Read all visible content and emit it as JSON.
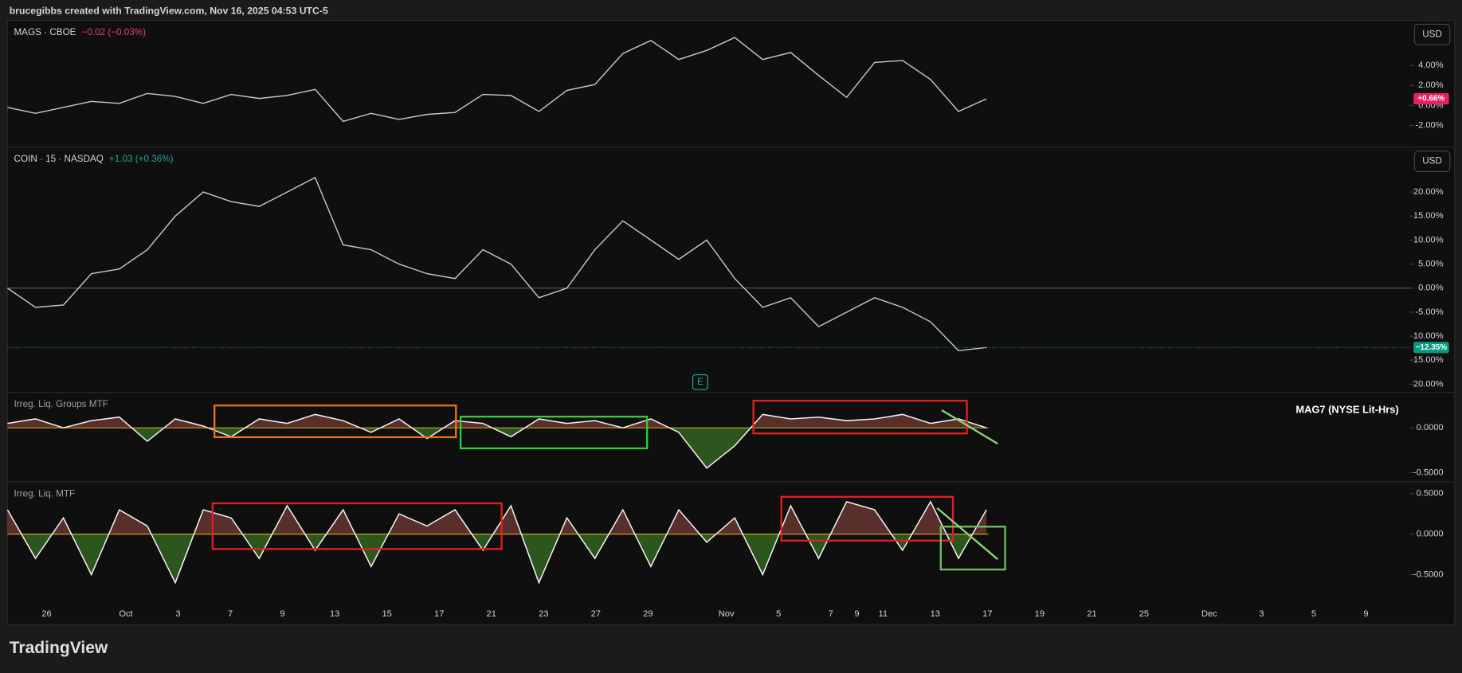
{
  "header": "brucegibbs created with TradingView.com, Nov 16, 2025 04:53 UTC-5",
  "footer": "TradingView",
  "currency_button": "USD",
  "earnings_marker": "E",
  "x_axis_labels": [
    "26",
    "Oct",
    "3",
    "7",
    "9",
    "13",
    "15",
    "17",
    "21",
    "23",
    "27",
    "29",
    "Nov",
    "5",
    "7",
    "9",
    "11",
    "13",
    "17",
    "19",
    "21",
    "25",
    "Dec",
    "3",
    "5",
    "9"
  ],
  "chart_data": [
    {
      "type": "line",
      "title": "MAGS · CBOE",
      "change": "−0.02 (−0.03%)",
      "change_color": "#f23d72",
      "ylim": [
        -4.1,
        8.5
      ],
      "yticks": [
        {
          "value": 4,
          "label": "4.00%"
        },
        {
          "value": 2,
          "label": "2.00%"
        },
        {
          "value": 0,
          "label": "0.00%"
        },
        {
          "value": -2,
          "label": "-2.00%"
        }
      ],
      "last": {
        "value": 0.66,
        "label": "+0.66%",
        "color": "#e91e63"
      },
      "series": [
        {
          "color": "#c9c9c9",
          "values": [
            -0.2,
            -0.8,
            -0.2,
            0.4,
            0.2,
            1.2,
            0.9,
            0.2,
            1.1,
            0.7,
            1.0,
            1.6,
            -1.6,
            -0.8,
            -1.4,
            -0.9,
            -0.7,
            1.1,
            1.0,
            -0.6,
            1.5,
            2.1,
            5.2,
            6.5,
            4.6,
            5.5,
            6.8,
            4.6,
            5.3,
            3.0,
            0.8,
            4.3,
            4.5,
            2.6,
            -0.6,
            0.66
          ]
        }
      ]
    },
    {
      "type": "line",
      "title": "COIN · 15 · NASDAQ",
      "change": "+1.03 (+0.36%)",
      "change_color": "#26a69a",
      "ylim": [
        -21.5,
        29.3
      ],
      "yticks": [
        {
          "value": 20,
          "label": "20.00%"
        },
        {
          "value": 15,
          "label": "15.00%"
        },
        {
          "value": 10,
          "label": "10.00%"
        },
        {
          "value": 5,
          "label": "5.00%"
        },
        {
          "value": 0,
          "label": "0.00%"
        },
        {
          "value": -5,
          "label": "-5.00%"
        },
        {
          "value": -10,
          "label": "-10.00%"
        },
        {
          "value": -15,
          "label": "-15.00%"
        },
        {
          "value": -20,
          "label": "-20.00%"
        }
      ],
      "last": {
        "value": -12.35,
        "label": "−12.35%",
        "color": "#089981"
      },
      "series": [
        {
          "color": "#c9c9c9",
          "values": [
            0,
            -4,
            -3.5,
            3,
            4,
            8,
            15,
            20,
            18,
            17,
            20,
            23,
            9,
            8,
            5,
            3,
            2,
            8,
            5,
            -2,
            0,
            8,
            14,
            10,
            6,
            10,
            2,
            -4,
            -2,
            -8,
            -5,
            -2,
            -4,
            -7,
            -13,
            -12.35
          ]
        }
      ]
    },
    {
      "type": "area",
      "title": "Irreg. Liq. Groups MTF",
      "annotation": "MAG7 (NYSE Lit-Hrs)",
      "ylim": [
        -0.594,
        0.396
      ],
      "yticks": [
        {
          "value": 0,
          "label": "0.0000"
        },
        {
          "value": -0.5,
          "label": "-0.5000"
        }
      ],
      "series": [
        {
          "color": "#f2f2f2",
          "values": [
            0.05,
            0.1,
            0.0,
            0.08,
            0.12,
            -0.15,
            0.1,
            0.02,
            -0.1,
            0.1,
            0.05,
            0.15,
            0.08,
            -0.05,
            0.1,
            -0.12,
            0.08,
            0.05,
            -0.1,
            0.1,
            0.05,
            0.08,
            0.0,
            0.1,
            -0.05,
            -0.45,
            -0.2,
            0.15,
            0.1,
            0.12,
            0.08,
            0.1,
            0.15,
            0.05,
            0.1,
            0.0
          ]
        }
      ]
    },
    {
      "type": "area",
      "title": "Irreg. Liq. MTF",
      "ylim": [
        -0.862,
        0.644
      ],
      "yticks": [
        {
          "value": 0.5,
          "label": "0.5000"
        },
        {
          "value": 0,
          "label": "0.0000"
        },
        {
          "value": -0.5,
          "label": "-0.5000"
        }
      ],
      "series": [
        {
          "color": "#f2f2f2",
          "values": [
            0.3,
            -0.3,
            0.2,
            -0.5,
            0.3,
            0.1,
            -0.6,
            0.3,
            0.2,
            -0.3,
            0.35,
            -0.2,
            0.3,
            -0.4,
            0.25,
            0.1,
            0.3,
            -0.2,
            0.35,
            -0.6,
            0.2,
            -0.3,
            0.3,
            -0.4,
            0.3,
            -0.1,
            0.2,
            -0.5,
            0.35,
            -0.3,
            0.4,
            0.3,
            -0.2,
            0.4,
            -0.3,
            0.3
          ]
        }
      ]
    }
  ]
}
